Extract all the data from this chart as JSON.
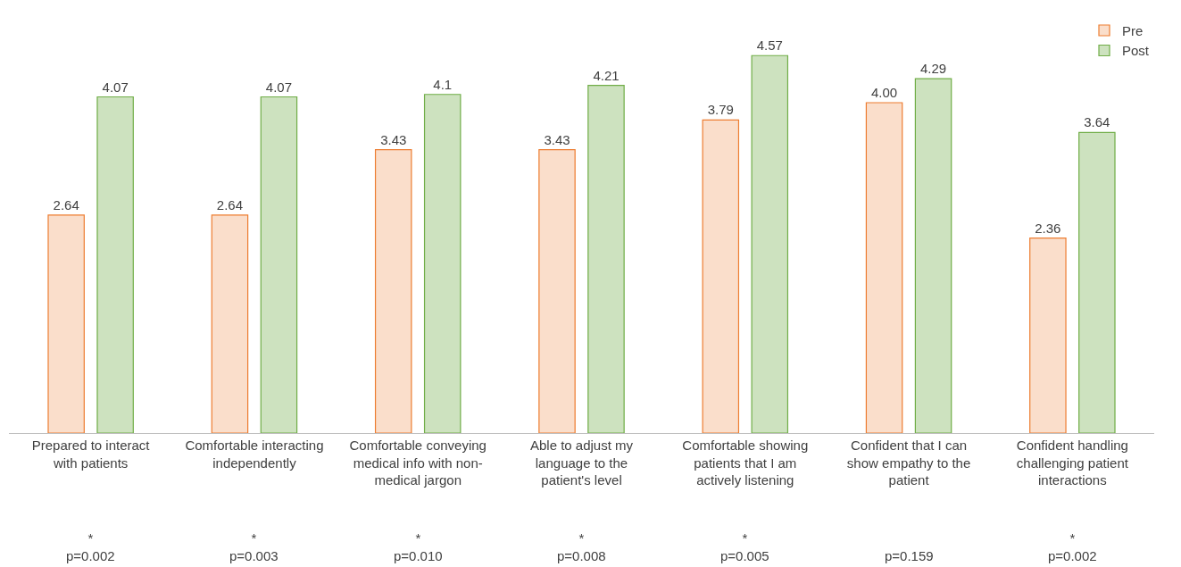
{
  "chart_data": {
    "type": "bar",
    "categories": [
      "Prepared to interact with patients",
      "Comfortable interacting independently",
      "Comfortable conveying medical info with non-medical jargon",
      "Able to adjust my language to the patient's level",
      "Comfortable showing patients that I am actively listening",
      "Confident that I can show empathy to the patient",
      "Confident handling challenging patient interactions"
    ],
    "series": [
      {
        "name": "Pre",
        "color": "#ed7d31",
        "values": [
          2.64,
          2.64,
          3.43,
          3.43,
          3.79,
          4.0,
          2.36
        ],
        "value_labels": [
          "2.64",
          "2.64",
          "3.43",
          "3.43",
          "3.79",
          "4.00",
          "2.36"
        ]
      },
      {
        "name": "Post",
        "color": "#70ad47",
        "values": [
          4.07,
          4.07,
          4.1,
          4.21,
          4.57,
          4.29,
          3.64
        ],
        "value_labels": [
          "4.07",
          "4.07",
          "4.1",
          "4.21",
          "4.57",
          "4.29",
          "3.64"
        ]
      }
    ],
    "annotations": [
      "*\np=0.002",
      "*\np=0.003",
      "*\np=0.010",
      "*\np=0.008",
      "*\np=0.005",
      "p=0.159",
      "*\np=0.002"
    ],
    "legend": "top right"
  }
}
